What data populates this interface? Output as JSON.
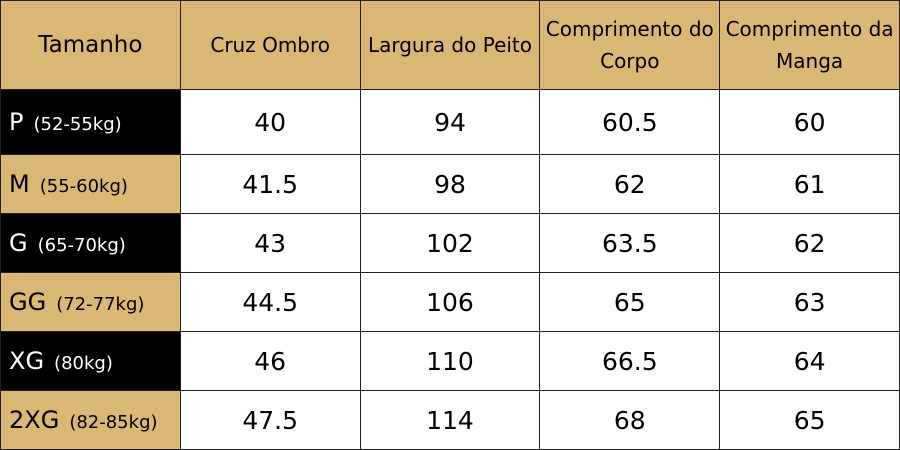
{
  "headers": [
    "Tamanho",
    "Cruz Ombro",
    "Largura do Peito",
    "Comprimento do Corpo",
    "Comprimento da Manga"
  ],
  "rows": [
    {
      "size": "P",
      "weight": "(52-55kg)",
      "values": [
        "40",
        "94",
        "60.5",
        "60"
      ],
      "style": "dark"
    },
    {
      "size": "M",
      "weight": "(55-60kg)",
      "values": [
        "41.5",
        "98",
        "62",
        "61"
      ],
      "style": "gold"
    },
    {
      "size": "G",
      "weight": "(65-70kg)",
      "values": [
        "43",
        "102",
        "63.5",
        "62"
      ],
      "style": "dark"
    },
    {
      "size": "GG",
      "weight": "(72-77kg)",
      "values": [
        "44.5",
        "106",
        "65",
        "63"
      ],
      "style": "gold"
    },
    {
      "size": "XG",
      "weight": "(80kg)",
      "values": [
        "46",
        "110",
        "66.5",
        "64"
      ],
      "style": "dark"
    },
    {
      "size": "2XG",
      "weight": "(82-85kg)",
      "values": [
        "47.5",
        "114",
        "68",
        "65"
      ],
      "style": "gold"
    }
  ],
  "colors": {
    "gold": "#dab775",
    "dark": "#000000"
  }
}
